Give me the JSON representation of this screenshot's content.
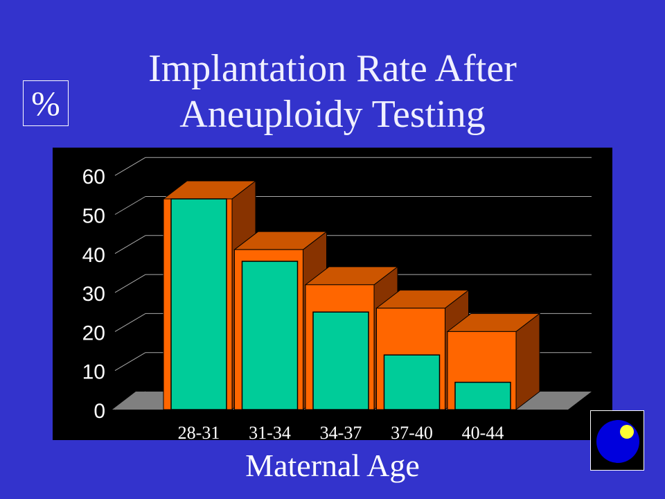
{
  "title_line1": "Implantation Rate After",
  "title_line2": "Aneuploidy Testing",
  "ylabel": "%",
  "xlabel": "Maternal Age",
  "corner_icon": "ball-icon",
  "colors": {
    "background": "#3333cc",
    "plot_background": "#000000",
    "back_bar_front": "#ff6600",
    "back_bar_top": "#cc5500",
    "back_bar_side": "#883300",
    "front_bar": "#00cc99",
    "floor": "#808080",
    "ball": "#0000dd",
    "ball_highlight": "#ffff33"
  },
  "chart_data": {
    "type": "bar",
    "title": "Implantation Rate After Aneuploidy Testing",
    "xlabel": "Maternal Age",
    "ylabel": "%",
    "categories": [
      "28-31",
      "31-34",
      "34-37",
      "37-40",
      "40-44"
    ],
    "series": [
      {
        "values": [
          54,
          41,
          32,
          26,
          20
        ]
      },
      {
        "values": [
          54,
          38,
          25,
          14,
          7
        ]
      }
    ],
    "ylim": [
      0,
      60
    ],
    "yticks": [
      "0",
      "10",
      "20",
      "30",
      "40",
      "50",
      "60"
    ],
    "grid": true,
    "style": "3d"
  }
}
